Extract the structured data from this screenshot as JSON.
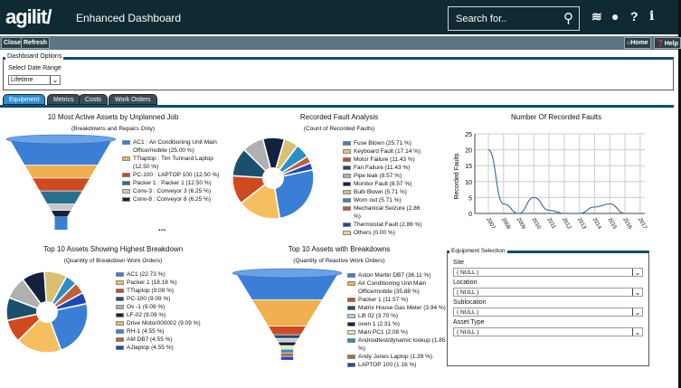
{
  "header": {
    "logo": "agilit/",
    "title": "Enhanced Dashboard",
    "search_placeholder": "Search for..",
    "icons": [
      "rss-icon",
      "globe-icon",
      "help-icon",
      "info-icon"
    ]
  },
  "toolbar": {
    "close": "Close",
    "refresh": "Refresh",
    "home": "Home",
    "help": "Help"
  },
  "options": {
    "legend": "Dashboard Options",
    "date_label": "Select Date Range",
    "date_value": "Lifetime"
  },
  "tabs": [
    {
      "label": "Equipment",
      "active": true
    },
    {
      "label": "Metrics"
    },
    {
      "label": "Costs"
    },
    {
      "label": "Work Orders"
    }
  ],
  "chart_data": [
    {
      "type": "funnel",
      "title": "10 Most Active Assets by Unplanned Job",
      "subtitle": "(Breakdowns and Repairs Only)",
      "labels": [
        "AC1 : Air Conditioning Unit Main Office/mobile (25.00 %)",
        "TTlaptop : Tim Tunnard Laptop (12.50 %)",
        "PC-100 : LAPTOP 100 (12.50 %)",
        "Packer 1 : Packer 1 (12.50 %)",
        "Conv-3 : Conveyor 3 (6.25 %)",
        "Conv-8 : Conveyor 8 (6.25 %)"
      ],
      "values": [
        25,
        12.5,
        12.5,
        12.5,
        6.25,
        6.25
      ],
      "colors": [
        "#3a7fd5",
        "#f0b050",
        "#d04a20",
        "#2a6f90",
        "#c8c8c8",
        "#14213d"
      ],
      "more": "..."
    },
    {
      "type": "pie",
      "title": "Recorded Fault Analysis",
      "subtitle": "(Count of Recorded Faults)",
      "labels": [
        "Fuse Blown (25.71 %)",
        "Keyboard Fault (17.14 %)",
        "Motor Failure (11.43 %)",
        "Fan Failure (11.43 %)",
        "Pipe leak (8.57 %)",
        "Monitor Fault (8.57 %)",
        "Bulb Blown (5.71 %)",
        "Worn out (5.71 %)",
        "Mechanical Seizure (2.86 %)",
        "Thermostat Fault (2.86 %)",
        "Others (0.00 %)"
      ],
      "values": [
        25.71,
        17.14,
        11.43,
        11.43,
        8.57,
        8.57,
        5.71,
        5.71,
        2.86,
        2.86,
        0
      ],
      "colors": [
        "#3a7fd5",
        "#f5bf60",
        "#d04a20",
        "#1b4f6e",
        "#b0b0b0",
        "#14213d",
        "#d8c070",
        "#2a8fc8",
        "#c0603a",
        "#1c46b8",
        "#f0d090"
      ]
    },
    {
      "type": "line",
      "title": "Number Of Recorded Faults",
      "ylabel": "Recorded Faults",
      "ylim": [
        0,
        25
      ],
      "yticks": [
        "0",
        "5",
        "10",
        "15",
        "20",
        "25"
      ],
      "x": [
        "2007",
        "2008",
        "2009",
        "2010",
        "2011",
        "2012",
        "2013",
        "2014",
        "2015",
        "2016",
        "2017"
      ],
      "values": [
        20,
        3,
        0,
        5,
        1,
        0,
        0,
        2,
        3,
        0,
        null
      ]
    },
    {
      "type": "pie",
      "title": "Top 10 Assets Showing Highest Breakdown",
      "subtitle": "(Quantity of Breakdown Work Orders)",
      "labels": [
        "AC1 (22.73 %)",
        "Packer 1 (18.18 %)",
        "TTlaptop (9.09 %)",
        "PC-100 (9.09 %)",
        "Ov -1 (9.09 %)",
        "LF-02 (9.09 %)",
        "Drive Motor000002 (9.09 %)",
        "RH-1 (4.55 %)",
        "AM DB7 (4.55 %)",
        "AJlaptop (4.55 %)"
      ],
      "values": [
        22.73,
        18.18,
        9.09,
        9.09,
        9.09,
        9.09,
        9.09,
        4.55,
        4.55,
        4.55
      ],
      "colors": [
        "#3a7fd5",
        "#f5bf60",
        "#d04a20",
        "#1b4f6e",
        "#b0b0b0",
        "#14213d",
        "#d8c070",
        "#2a8fc8",
        "#c0603a",
        "#1c46b8"
      ]
    },
    {
      "type": "funnel",
      "title": "Top 10 Assets with Breakdowns",
      "subtitle": "(Quantity of Reactive Work Orders)",
      "labels": [
        "Aston Martin DB7 (36.11 %)",
        "Air Conditioning Unit Main Office/mobile (35.88 %)",
        "Packer 1 (11.57 %)",
        "Matrix House Gas Meter (3.94 %)",
        "Lift 02 (3.70 %)",
        "oven 1 (2.31 %)",
        "Main PC1 (2.08 %)",
        "Androidtest/dynamic lookup (1.85 %)",
        "Andy Jones Laptop (1.39 %)",
        "LAPTOP 100 (1.16 %)"
      ],
      "values": [
        36.11,
        35.88,
        11.57,
        3.94,
        3.7,
        2.31,
        2.08,
        1.85,
        1.39,
        1.16
      ],
      "colors": [
        "#3a7fd5",
        "#f0b050",
        "#d04a20",
        "#1b4f6e",
        "#c8c8c8",
        "#14213d",
        "#f0e0a0",
        "#2a8fc8",
        "#c0603a",
        "#1c46b8"
      ]
    }
  ],
  "equipment": {
    "legend": "Equipment Selection",
    "fields": [
      {
        "label": "Site",
        "value": "( NULL )"
      },
      {
        "label": "Location",
        "value": "( NULL )"
      },
      {
        "label": "Sublocation",
        "value": "( NULL )"
      },
      {
        "label": "Asset Type",
        "value": "( NULL )"
      }
    ]
  }
}
